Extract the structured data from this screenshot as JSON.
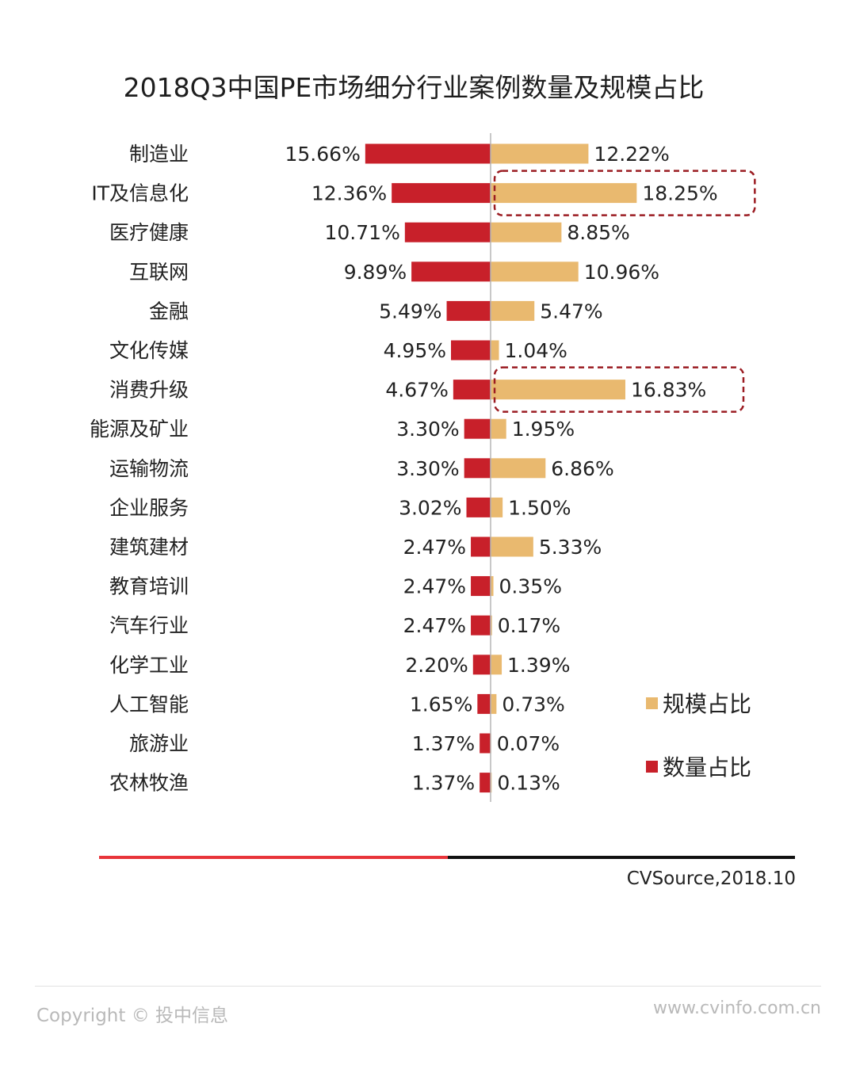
{
  "chart_data": {
    "type": "bar",
    "title": "2018Q3中国PE市场细分行业案例数量及规模占比",
    "categories": [
      "制造业",
      "IT及信息化",
      "医疗健康",
      "互联网",
      "金融",
      "文化传媒",
      "消费升级",
      "能源及矿业",
      "运输物流",
      "企业服务",
      "建筑建材",
      "教育培训",
      "汽车行业",
      "化学工业",
      "人工智能",
      "旅游业",
      "农林牧渔"
    ],
    "series": [
      {
        "name": "数量占比",
        "color": "#c8202a",
        "side": "left",
        "values": [
          15.66,
          12.36,
          10.71,
          9.89,
          5.49,
          4.95,
          4.67,
          3.3,
          3.3,
          3.02,
          2.47,
          2.47,
          2.47,
          2.2,
          1.65,
          1.37,
          1.37
        ],
        "labels": [
          "15.66%",
          "12.36%",
          "10.71%",
          "9.89%",
          "5.49%",
          "4.95%",
          "4.67%",
          "3.30%",
          "3.30%",
          "3.02%",
          "2.47%",
          "2.47%",
          "2.47%",
          "2.20%",
          "1.65%",
          "1.37%",
          "1.37%"
        ]
      },
      {
        "name": "规模占比",
        "color": "#e9b96f",
        "side": "right",
        "values": [
          12.22,
          18.25,
          8.85,
          10.96,
          5.47,
          1.04,
          16.83,
          1.95,
          6.86,
          1.5,
          5.33,
          0.35,
          0.17,
          1.39,
          0.73,
          0.07,
          0.13
        ],
        "labels": [
          "12.22%",
          "18.25%",
          "8.85%",
          "10.96%",
          "5.47%",
          "1.04%",
          "16.83%",
          "1.95%",
          "6.86%",
          "1.50%",
          "5.33%",
          "0.35%",
          "0.17%",
          "1.39%",
          "0.73%",
          "0.07%",
          "0.13%"
        ]
      }
    ],
    "highlighted_categories": [
      "IT及信息化",
      "消费升级"
    ],
    "highlight_color": "#9b1c22",
    "legend": {
      "position": "right",
      "order": [
        "规模占比",
        "数量占比"
      ]
    },
    "grid": false
  },
  "source": "CVSource,2018.10",
  "footer": {
    "copyright": "Copyright © 投中信息",
    "website": "www.cvinfo.com.cn"
  },
  "colors": {
    "divider_left": "#e8343a",
    "divider_right": "#111111"
  }
}
